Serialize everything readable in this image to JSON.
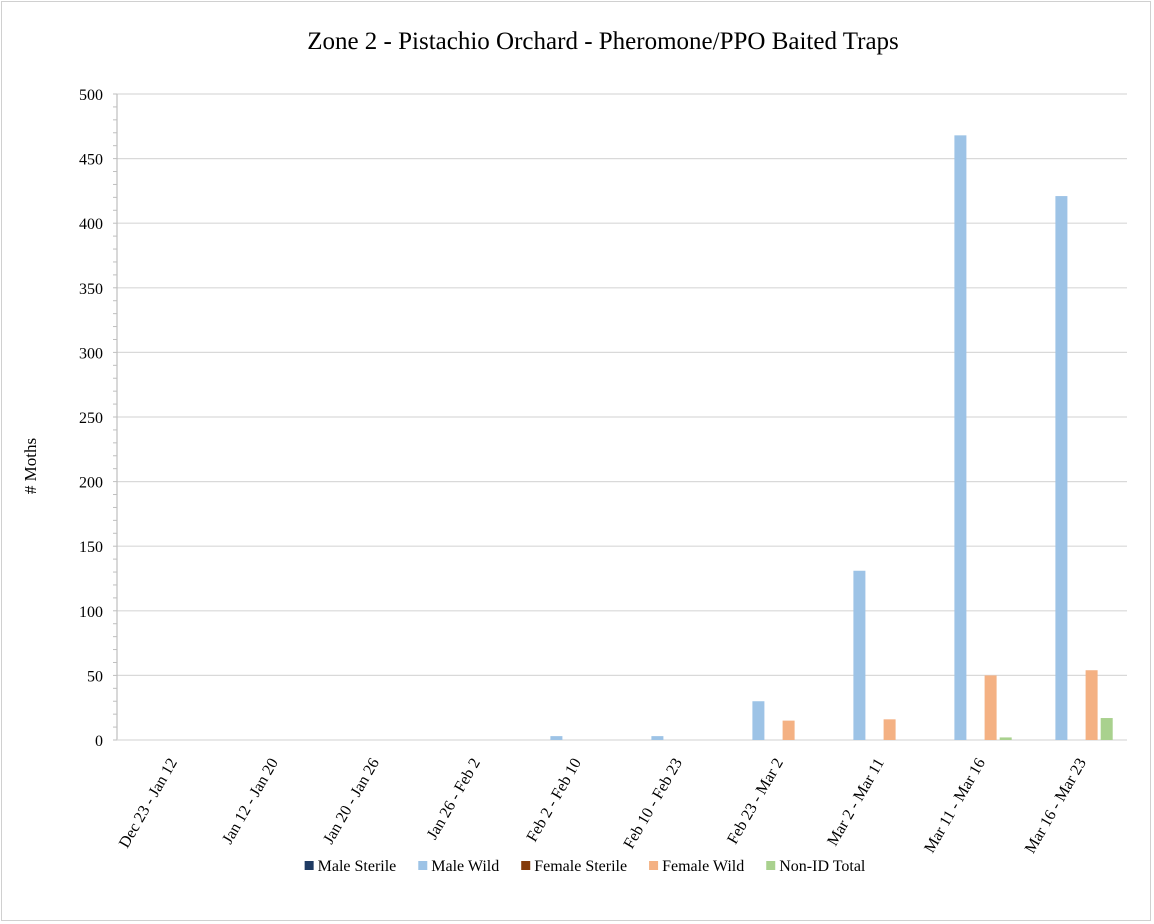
{
  "chart_data": {
    "type": "bar",
    "title": "Zone 2 - Pistachio Orchard - Pheromone/PPO Baited Traps",
    "xlabel": "",
    "ylabel": "# Moths",
    "ylim": [
      0,
      500
    ],
    "yticks": [
      0,
      50,
      100,
      150,
      200,
      250,
      300,
      350,
      400,
      450,
      500
    ],
    "grid": true,
    "legend_position": "bottom",
    "categories": [
      "Dec 23 - Jan 12",
      "Jan 12 - Jan 20",
      "Jan 20 - Jan 26",
      "Jan 26 - Feb 2",
      "Feb 2 - Feb 10",
      "Feb 10 - Feb 23",
      "Feb 23 - Mar 2",
      "Mar 2 - Mar 11",
      "Mar 11 - Mar 16",
      "Mar 16 - Mar 23"
    ],
    "series": [
      {
        "name": "Male Sterile",
        "color": "#1f3b63",
        "values": [
          0,
          0,
          0,
          0,
          0,
          0,
          0,
          0,
          0,
          0
        ]
      },
      {
        "name": "Male Wild",
        "color": "#9dc3e6",
        "values": [
          0,
          0,
          0,
          0,
          3,
          3,
          30,
          131,
          468,
          421
        ]
      },
      {
        "name": "Female Sterile",
        "color": "#843c0c",
        "values": [
          0,
          0,
          0,
          0,
          0,
          0,
          0,
          0,
          0,
          0
        ]
      },
      {
        "name": "Female Wild",
        "color": "#f4b183",
        "values": [
          0,
          0,
          0,
          0,
          0,
          0,
          15,
          16,
          50,
          54
        ]
      },
      {
        "name": "Non-ID Total",
        "color": "#a9d18e",
        "values": [
          0,
          0,
          0,
          0,
          0,
          0,
          0,
          0,
          2,
          17
        ]
      }
    ]
  }
}
